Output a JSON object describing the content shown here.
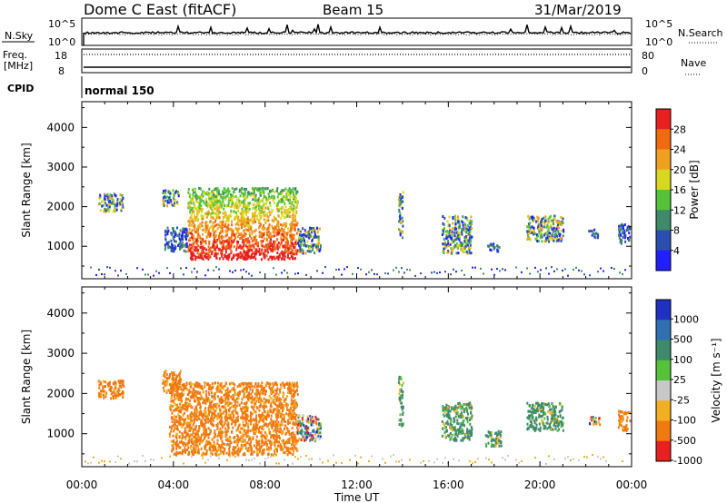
{
  "header": {
    "station": "Dome C East (fitACF)",
    "beam": "Beam 15",
    "date": "31/Mar/2019"
  },
  "strips": {
    "nsky_label": "N.Sky",
    "nsky_ticks": [
      "10^5",
      "10^0"
    ],
    "nsearch_label": "N.Search",
    "nsearch_ticks": [
      "10^5",
      "10^0"
    ],
    "freq_label": [
      "Freq.",
      "[MHz]"
    ],
    "freq_ticks": [
      "18",
      "8"
    ],
    "nave_label": "Nave",
    "nave_ticks": [
      "80",
      "0"
    ],
    "cpid_label": "CPID",
    "cpid_mode": "normal 150"
  },
  "chart_data": [
    {
      "type": "heatmap",
      "name": "power",
      "ylabel": "Slant Range [km]",
      "xlabel": "Time UT",
      "xticks": [
        "00:00",
        "04:00",
        "08:00",
        "12:00",
        "16:00",
        "20:00",
        "00:00"
      ],
      "xlim_hours": [
        0,
        24
      ],
      "yticks": [
        1000,
        2000,
        3000,
        4000
      ],
      "ylim_km": [
        180,
        4650
      ],
      "colorbar": {
        "label": "Power [dB]",
        "ticks": [
          "4",
          "8",
          "12",
          "16",
          "20",
          "24",
          "28"
        ],
        "colors": [
          "#1f1fff",
          "#2a4fb0",
          "#3f8a6a",
          "#55c23a",
          "#d8d820",
          "#f0a020",
          "#f06a10",
          "#e82020"
        ]
      },
      "echo_regions": [
        {
          "t0": 0.7,
          "t1": 1.8,
          "r0": 1900,
          "r1": 2350,
          "level": "mixed"
        },
        {
          "t0": 3.5,
          "t1": 4.2,
          "r0": 2050,
          "r1": 2450,
          "level": "mixed"
        },
        {
          "t0": 3.6,
          "t1": 4.6,
          "r0": 900,
          "r1": 1500,
          "level": "low"
        },
        {
          "t0": 4.6,
          "t1": 9.4,
          "r0": 700,
          "r1": 2500,
          "level": "high"
        },
        {
          "t0": 9.4,
          "t1": 10.4,
          "r0": 850,
          "r1": 1500,
          "level": "mixed"
        },
        {
          "t0": 13.8,
          "t1": 14.0,
          "r0": 1200,
          "r1": 2450,
          "level": "mixed"
        },
        {
          "t0": 15.7,
          "t1": 17.0,
          "r0": 850,
          "r1": 1800,
          "level": "mixed"
        },
        {
          "t0": 17.7,
          "t1": 18.2,
          "r0": 900,
          "r1": 1100,
          "level": "low"
        },
        {
          "t0": 19.4,
          "t1": 21.0,
          "r0": 1150,
          "r1": 1800,
          "level": "mixed"
        },
        {
          "t0": 22.1,
          "t1": 22.5,
          "r0": 1250,
          "r1": 1450,
          "level": "low"
        },
        {
          "t0": 23.4,
          "t1": 23.9,
          "r0": 1100,
          "r1": 1600,
          "level": "low"
        }
      ]
    },
    {
      "type": "heatmap",
      "name": "velocity",
      "ylabel": "Slant Range [km]",
      "xlabel": "Time UT",
      "xticks": [
        "00:00",
        "04:00",
        "08:00",
        "12:00",
        "16:00",
        "20:00",
        "00:00"
      ],
      "xlim_hours": [
        0,
        24
      ],
      "yticks": [
        1000,
        2000,
        3000,
        4000
      ],
      "ylim_km": [
        180,
        4650
      ],
      "colorbar": {
        "label": "Velocity [m s⁻¹]",
        "ticks": [
          "1000",
          "500",
          "100",
          "25",
          "-25",
          "-100",
          "-500",
          "-1000"
        ],
        "colors": [
          "#2030c0",
          "#3070b0",
          "#3f8a6a",
          "#55c23a",
          "#c8c8c8",
          "#f0b020",
          "#f07a10",
          "#e82020"
        ]
      },
      "echo_regions": [
        {
          "t0": 0.7,
          "t1": 1.8,
          "r0": 1900,
          "r1": 2350,
          "level": "negative"
        },
        {
          "t0": 3.5,
          "t1": 4.3,
          "r0": 2050,
          "r1": 2600,
          "level": "negative"
        },
        {
          "t0": 3.8,
          "t1": 9.4,
          "r0": 500,
          "r1": 2300,
          "level": "negative"
        },
        {
          "t0": 9.4,
          "t1": 10.4,
          "r0": 850,
          "r1": 1500,
          "level": "mixed"
        },
        {
          "t0": 13.8,
          "t1": 14.0,
          "r0": 1200,
          "r1": 2450,
          "level": "positive"
        },
        {
          "t0": 15.7,
          "t1": 17.0,
          "r0": 850,
          "r1": 1800,
          "level": "positive"
        },
        {
          "t0": 17.6,
          "t1": 18.3,
          "r0": 700,
          "r1": 1100,
          "level": "positive"
        },
        {
          "t0": 19.4,
          "t1": 21.0,
          "r0": 1100,
          "r1": 1800,
          "level": "positive"
        },
        {
          "t0": 22.1,
          "t1": 22.6,
          "r0": 1250,
          "r1": 1450,
          "level": "mixed"
        },
        {
          "t0": 23.4,
          "t1": 23.9,
          "r0": 1100,
          "r1": 1600,
          "level": "negative"
        }
      ]
    }
  ]
}
